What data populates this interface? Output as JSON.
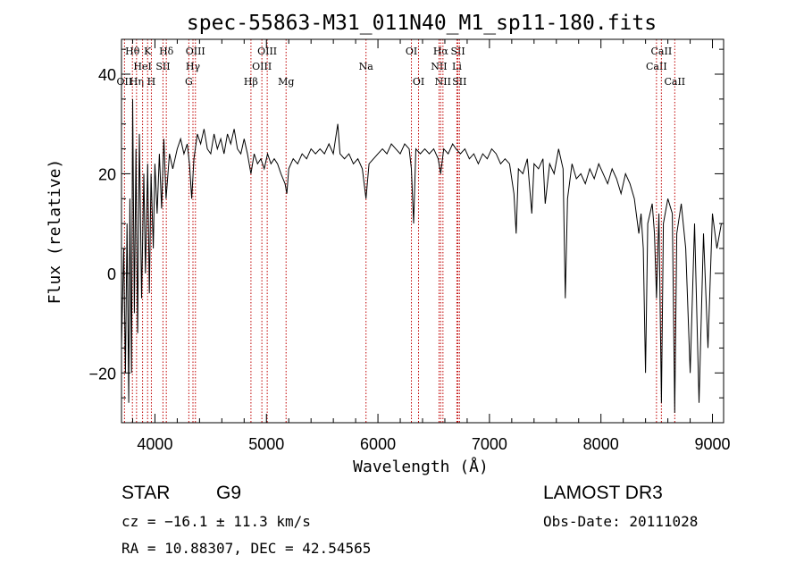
{
  "chart_data": {
    "type": "line",
    "title": "spec-55863-M31_011N40_M1_sp11-180.fits",
    "xlabel": "Wavelength (Å)",
    "ylabel": "Flux (relative)",
    "xlim": [
      3700,
      9100
    ],
    "ylim": [
      -30,
      47
    ],
    "xticks": [
      4000,
      5000,
      6000,
      7000,
      8000,
      9000
    ],
    "yticks": [
      -20,
      0,
      20,
      40
    ],
    "grid": false,
    "series": [
      {
        "name": "spectrum",
        "color": "#000000",
        "points": [
          [
            3700,
            -15
          ],
          [
            3720,
            5
          ],
          [
            3735,
            -20
          ],
          [
            3750,
            10
          ],
          [
            3765,
            -26
          ],
          [
            3775,
            15
          ],
          [
            3790,
            -20
          ],
          [
            3800,
            35
          ],
          [
            3815,
            -8
          ],
          [
            3830,
            25
          ],
          [
            3845,
            -12
          ],
          [
            3860,
            28
          ],
          [
            3880,
            -5
          ],
          [
            3900,
            20
          ],
          [
            3915,
            0
          ],
          [
            3935,
            22
          ],
          [
            3950,
            -4
          ],
          [
            3965,
            20
          ],
          [
            3985,
            5
          ],
          [
            4000,
            22
          ],
          [
            4020,
            12
          ],
          [
            4040,
            24
          ],
          [
            4060,
            13
          ],
          [
            4080,
            27
          ],
          [
            4100,
            15
          ],
          [
            4130,
            24
          ],
          [
            4160,
            21
          ],
          [
            4200,
            25
          ],
          [
            4230,
            27
          ],
          [
            4260,
            24
          ],
          [
            4290,
            26
          ],
          [
            4310,
            22
          ],
          [
            4330,
            15
          ],
          [
            4350,
            23
          ],
          [
            4380,
            28
          ],
          [
            4410,
            26
          ],
          [
            4440,
            29
          ],
          [
            4470,
            25
          ],
          [
            4500,
            24
          ],
          [
            4530,
            28
          ],
          [
            4560,
            25
          ],
          [
            4590,
            27
          ],
          [
            4620,
            24
          ],
          [
            4650,
            28
          ],
          [
            4680,
            26
          ],
          [
            4710,
            29
          ],
          [
            4740,
            25
          ],
          [
            4770,
            24
          ],
          [
            4800,
            27
          ],
          [
            4830,
            24
          ],
          [
            4861,
            20
          ],
          [
            4890,
            24
          ],
          [
            4920,
            22
          ],
          [
            4950,
            23
          ],
          [
            4980,
            21
          ],
          [
            5010,
            24
          ],
          [
            5040,
            22
          ],
          [
            5070,
            23
          ],
          [
            5100,
            22
          ],
          [
            5130,
            20
          ],
          [
            5167,
            18
          ],
          [
            5183,
            16
          ],
          [
            5200,
            21
          ],
          [
            5240,
            23
          ],
          [
            5280,
            22
          ],
          [
            5320,
            24
          ],
          [
            5360,
            23
          ],
          [
            5400,
            25
          ],
          [
            5440,
            24
          ],
          [
            5480,
            25
          ],
          [
            5520,
            24
          ],
          [
            5560,
            26
          ],
          [
            5600,
            24
          ],
          [
            5640,
            30
          ],
          [
            5660,
            24
          ],
          [
            5700,
            23
          ],
          [
            5740,
            24
          ],
          [
            5780,
            22
          ],
          [
            5820,
            23
          ],
          [
            5860,
            21
          ],
          [
            5893,
            15
          ],
          [
            5920,
            22
          ],
          [
            5960,
            23
          ],
          [
            6000,
            24
          ],
          [
            6040,
            25
          ],
          [
            6080,
            24
          ],
          [
            6120,
            26
          ],
          [
            6160,
            25
          ],
          [
            6200,
            24
          ],
          [
            6240,
            26
          ],
          [
            6280,
            25
          ],
          [
            6300,
            21
          ],
          [
            6320,
            10
          ],
          [
            6340,
            25
          ],
          [
            6380,
            24
          ],
          [
            6420,
            25
          ],
          [
            6460,
            24
          ],
          [
            6500,
            25
          ],
          [
            6540,
            23
          ],
          [
            6563,
            20
          ],
          [
            6590,
            25
          ],
          [
            6630,
            24
          ],
          [
            6670,
            26
          ],
          [
            6700,
            25
          ],
          [
            6740,
            24
          ],
          [
            6780,
            25
          ],
          [
            6820,
            23
          ],
          [
            6860,
            24
          ],
          [
            6900,
            22
          ],
          [
            6940,
            24
          ],
          [
            6980,
            23
          ],
          [
            7020,
            25
          ],
          [
            7060,
            24
          ],
          [
            7100,
            22
          ],
          [
            7140,
            23
          ],
          [
            7180,
            22
          ],
          [
            7220,
            16
          ],
          [
            7240,
            8
          ],
          [
            7260,
            21
          ],
          [
            7300,
            20
          ],
          [
            7340,
            23
          ],
          [
            7380,
            12
          ],
          [
            7400,
            22
          ],
          [
            7440,
            21
          ],
          [
            7480,
            23
          ],
          [
            7500,
            14
          ],
          [
            7540,
            22
          ],
          [
            7580,
            20
          ],
          [
            7620,
            25
          ],
          [
            7660,
            21
          ],
          [
            7680,
            -5
          ],
          [
            7700,
            15
          ],
          [
            7740,
            22
          ],
          [
            7780,
            19
          ],
          [
            7820,
            20
          ],
          [
            7860,
            18
          ],
          [
            7900,
            21
          ],
          [
            7940,
            19
          ],
          [
            7980,
            22
          ],
          [
            8020,
            20
          ],
          [
            8060,
            18
          ],
          [
            8100,
            21
          ],
          [
            8140,
            19
          ],
          [
            8180,
            16
          ],
          [
            8220,
            20
          ],
          [
            8260,
            18
          ],
          [
            8300,
            15
          ],
          [
            8340,
            8
          ],
          [
            8360,
            12
          ],
          [
            8380,
            5
          ],
          [
            8400,
            -20
          ],
          [
            8420,
            10
          ],
          [
            8460,
            14
          ],
          [
            8480,
            8
          ],
          [
            8498,
            -5
          ],
          [
            8520,
            12
          ],
          [
            8542,
            -26
          ],
          [
            8560,
            10
          ],
          [
            8600,
            15
          ],
          [
            8640,
            12
          ],
          [
            8662,
            -28
          ],
          [
            8680,
            8
          ],
          [
            8720,
            14
          ],
          [
            8760,
            5
          ],
          [
            8800,
            -20
          ],
          [
            8840,
            10
          ],
          [
            8880,
            -26
          ],
          [
            8920,
            8
          ],
          [
            8960,
            -15
          ],
          [
            9000,
            12
          ],
          [
            9040,
            5
          ],
          [
            9080,
            10
          ]
        ]
      }
    ],
    "line_markers": [
      {
        "name": "OII",
        "x": 3727,
        "row": 3
      },
      {
        "name": "Hθ",
        "x": 3798,
        "row": 1
      },
      {
        "name": "Hη",
        "x": 3835,
        "row": 3
      },
      {
        "name": "HeI",
        "x": 3889,
        "row": 2
      },
      {
        "name": "K",
        "x": 3934,
        "row": 1
      },
      {
        "name": "H",
        "x": 3968,
        "row": 3
      },
      {
        "name": "SII",
        "x": 4072,
        "row": 2
      },
      {
        "name": "Hδ",
        "x": 4102,
        "row": 1
      },
      {
        "name": "G",
        "x": 4304,
        "row": 3
      },
      {
        "name": "Hγ",
        "x": 4341,
        "row": 2
      },
      {
        "name": "OIII",
        "x": 4363,
        "row": 1
      },
      {
        "name": "Hβ",
        "x": 4861,
        "row": 3
      },
      {
        "name": "OIII",
        "x": 4959,
        "row": 2
      },
      {
        "name": "OIII",
        "x": 5007,
        "row": 1
      },
      {
        "name": "Mg",
        "x": 5176,
        "row": 3
      },
      {
        "name": "Na",
        "x": 5893,
        "row": 2
      },
      {
        "name": "OI",
        "x": 6300,
        "row": 1
      },
      {
        "name": "OI",
        "x": 6364,
        "row": 3
      },
      {
        "name": "NII",
        "x": 6548,
        "row": 2
      },
      {
        "name": "Hα",
        "x": 6563,
        "row": 1
      },
      {
        "name": "NII",
        "x": 6583,
        "row": 3
      },
      {
        "name": "Li",
        "x": 6708,
        "row": 2
      },
      {
        "name": "SII",
        "x": 6717,
        "row": 1
      },
      {
        "name": "SII",
        "x": 6731,
        "row": 3
      },
      {
        "name": "CaII",
        "x": 8498,
        "row": 2
      },
      {
        "name": "CaII",
        "x": 8542,
        "row": 1
      },
      {
        "name": "CaII",
        "x": 8662,
        "row": 3
      }
    ]
  },
  "info": {
    "object_class": "STAR",
    "subclass": "G9",
    "survey": "LAMOST DR3",
    "redshift_line": "cz = −16.1 ± 11.3 km/s",
    "obs_date": "Obs-Date: 20111028",
    "coords": "RA =  10.88307, DEC =  42.54565"
  }
}
